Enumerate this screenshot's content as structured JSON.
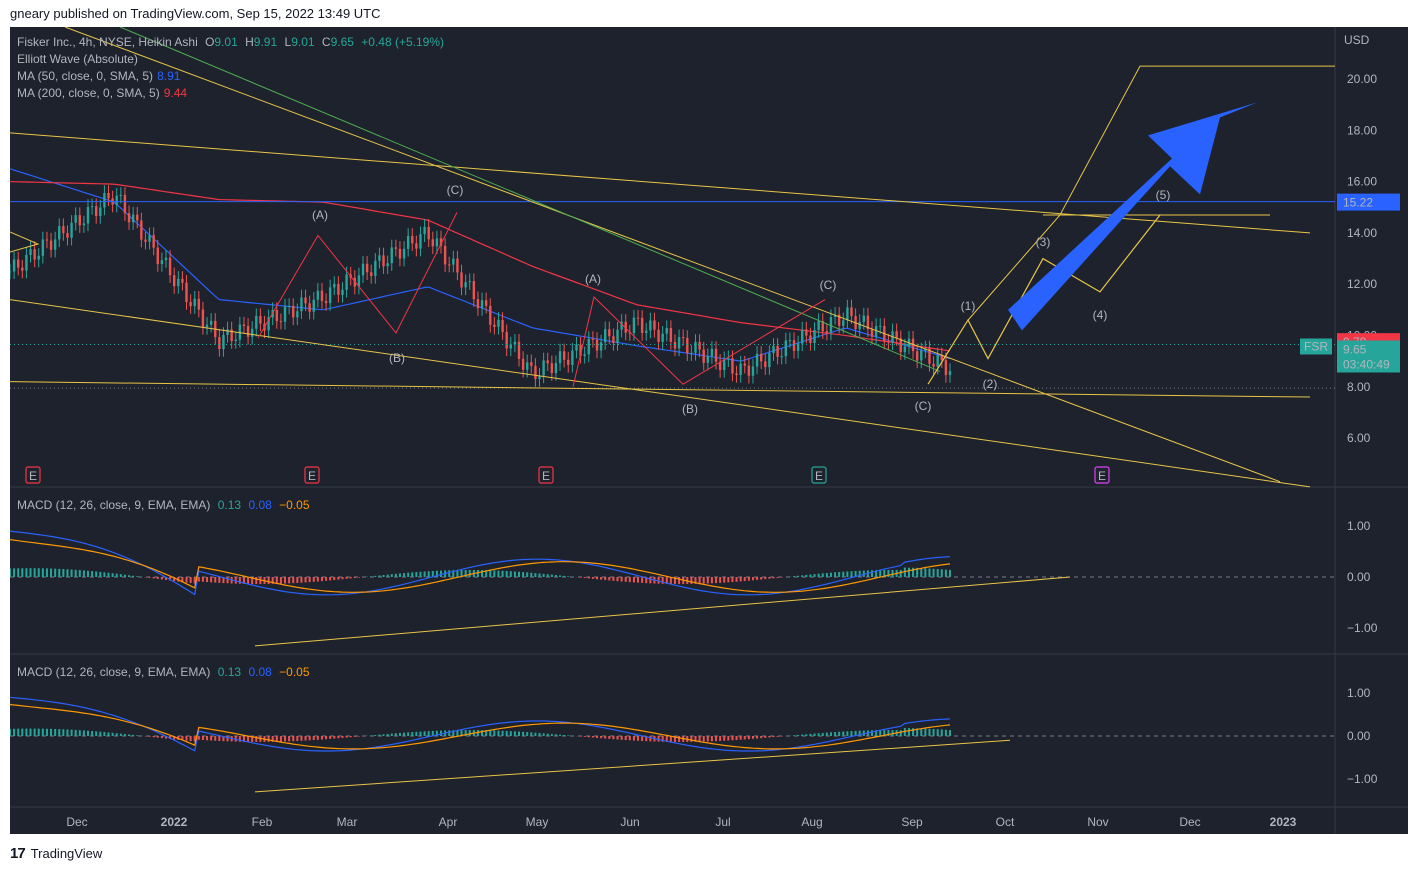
{
  "header": {
    "published": "gneary published on TradingView.com, Sep 15, 2022 13:49 UTC"
  },
  "footer": {
    "logo": "17",
    "brand": "TradingView"
  },
  "price_axis": {
    "currency": "USD",
    "ticks": [
      "20.00",
      "18.00",
      "16.00",
      "14.00",
      "12.00",
      "10.00",
      "8.00",
      "6.00"
    ]
  },
  "macd_ticks": [
    "1.00",
    "0.00",
    "−1.00"
  ],
  "time_axis": [
    "Dec",
    "2022",
    "Feb",
    "Mar",
    "Apr",
    "May",
    "Jun",
    "Jul",
    "Aug",
    "Sep",
    "Oct",
    "Nov",
    "Dec",
    "2023"
  ],
  "legend": {
    "symbol": "Fisker Inc., 4h, NYSE, Heikin Ashi",
    "o_label": "O",
    "o": "9.01",
    "h_label": "H",
    "h": "9.91",
    "l_label": "L",
    "l": "9.01",
    "c_label": "C",
    "c": "9.65",
    "change": "+0.48 (+5.19%)",
    "study": "Elliott Wave (Absolute)",
    "ma50": "MA (50, close, 0, SMA, 5)",
    "ma50_val": "8.91",
    "ma200": "MA (200, close, 0, SMA, 5)",
    "ma200_val": "9.44"
  },
  "macd1": {
    "name": "MACD (12, 26, close, 9, EMA, EMA)",
    "hist": "0.13",
    "macd": "0.08",
    "signal": "−0.05"
  },
  "macd2": {
    "name": "MACD (12, 26, close, 9, EMA, EMA)",
    "hist": "0.13",
    "macd": "0.08",
    "signal": "−0.05"
  },
  "price_tags": {
    "level": "15.22",
    "ma": "9.78",
    "ticker": "FSR",
    "price": "9.65",
    "countdown": "03:40:49"
  },
  "wave_labels": {
    "red": [
      "(A)",
      "(B)",
      "(C)",
      "(A)",
      "(B)",
      "(C)"
    ],
    "green": "(C)",
    "yellow": [
      "(1)",
      "(2)",
      "(3)",
      "(4)",
      "(5)"
    ]
  },
  "earnings_marker": "E",
  "colors": {
    "bg": "#1e222d",
    "up": "#26a69a",
    "down": "#ef5350",
    "ma50": "#2962ff",
    "ma200": "#f23645",
    "wave": "#e8c547",
    "arrow": "#2962ff",
    "signal": "#ff9800"
  },
  "chart_data": {
    "type": "line",
    "title": "Fisker Inc., 4h, NYSE, Heikin Ashi",
    "ylabel": "USD",
    "ylim": [
      4.1,
      21.6
    ],
    "x": [
      "Dec",
      "2022",
      "Feb",
      "Mar",
      "Apr",
      "May",
      "Jun",
      "Jul",
      "Aug",
      "Sep"
    ],
    "series": [
      {
        "name": "Fisker Inc.",
        "values": [
          12.5,
          15.5,
          9.8,
          11.5,
          14.0,
          8.5,
          10.5,
          8.6,
          10.8,
          8.7
        ]
      },
      {
        "name": "MA (50, close, 0, SMA, 5)",
        "values": [
          16.5,
          15.2,
          11.4,
          11.0,
          11.9,
          10.3,
          9.6,
          9.0,
          10.3,
          9.1
        ]
      },
      {
        "name": "MA (200, close, 0, SMA, 5)",
        "values": [
          16.0,
          15.9,
          15.3,
          15.2,
          14.5,
          12.7,
          11.2,
          10.5,
          10.0,
          9.4
        ]
      }
    ],
    "current_price": 9.65,
    "horizontal_level": 15.22
  }
}
